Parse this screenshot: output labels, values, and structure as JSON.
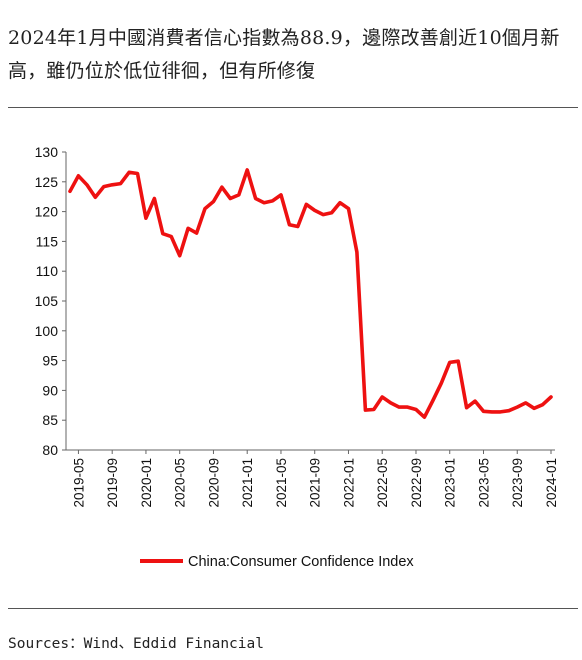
{
  "title": "2024年1月中國消費者信心指數為88.9，邊際改善創近10個月新高，雖仍位於低位徘徊，但有所修復",
  "source": "Sources：Wind、Eddid Financial",
  "chart_data": {
    "type": "line",
    "ylim": [
      80,
      130
    ],
    "yticks": [
      80,
      85,
      90,
      95,
      100,
      105,
      110,
      115,
      120,
      125,
      130
    ],
    "xticks": [
      "2019-05",
      "2019-09",
      "2020-01",
      "2020-05",
      "2020-09",
      "2021-01",
      "2021-05",
      "2021-09",
      "2022-01",
      "2022-05",
      "2022-09",
      "2023-01",
      "2023-05",
      "2023-09",
      "2024-01"
    ],
    "x": [
      "2019-04",
      "2019-05",
      "2019-06",
      "2019-07",
      "2019-08",
      "2019-09",
      "2019-10",
      "2019-11",
      "2019-12",
      "2020-01",
      "2020-02",
      "2020-03",
      "2020-04",
      "2020-05",
      "2020-06",
      "2020-07",
      "2020-08",
      "2020-09",
      "2020-10",
      "2020-11",
      "2020-12",
      "2021-01",
      "2021-02",
      "2021-03",
      "2021-04",
      "2021-05",
      "2021-06",
      "2021-07",
      "2021-08",
      "2021-09",
      "2021-10",
      "2021-11",
      "2021-12",
      "2022-01",
      "2022-02",
      "2022-03",
      "2022-04",
      "2022-05",
      "2022-06",
      "2022-07",
      "2022-08",
      "2022-09",
      "2022-10",
      "2022-11",
      "2022-12",
      "2023-01",
      "2023-02",
      "2023-03",
      "2023-04",
      "2023-05",
      "2023-06",
      "2023-07",
      "2023-08",
      "2023-09",
      "2023-10",
      "2023-11",
      "2023-12",
      "2024-01"
    ],
    "series": [
      {
        "name": "China:Consumer Confidence Index",
        "color": "#ee1111",
        "values": [
          123.4,
          126.0,
          124.5,
          122.4,
          124.2,
          124.5,
          124.7,
          126.6,
          126.4,
          118.9,
          122.2,
          116.3,
          115.8,
          112.6,
          117.2,
          116.4,
          120.5,
          121.7,
          124.1,
          122.2,
          122.8,
          127.0,
          122.2,
          121.5,
          121.8,
          122.8,
          117.8,
          117.5,
          121.2,
          120.2,
          119.5,
          119.8,
          121.5,
          120.5,
          113.2,
          86.7,
          86.8,
          88.9,
          87.9,
          87.2,
          87.2,
          86.8,
          85.5,
          88.3,
          91.2,
          94.7,
          94.9,
          87.1,
          88.2,
          86.5,
          86.4,
          86.4,
          86.6,
          87.2,
          87.9,
          87.0,
          87.6,
          88.9
        ]
      }
    ],
    "grid": false,
    "legend_position": "bottom"
  }
}
